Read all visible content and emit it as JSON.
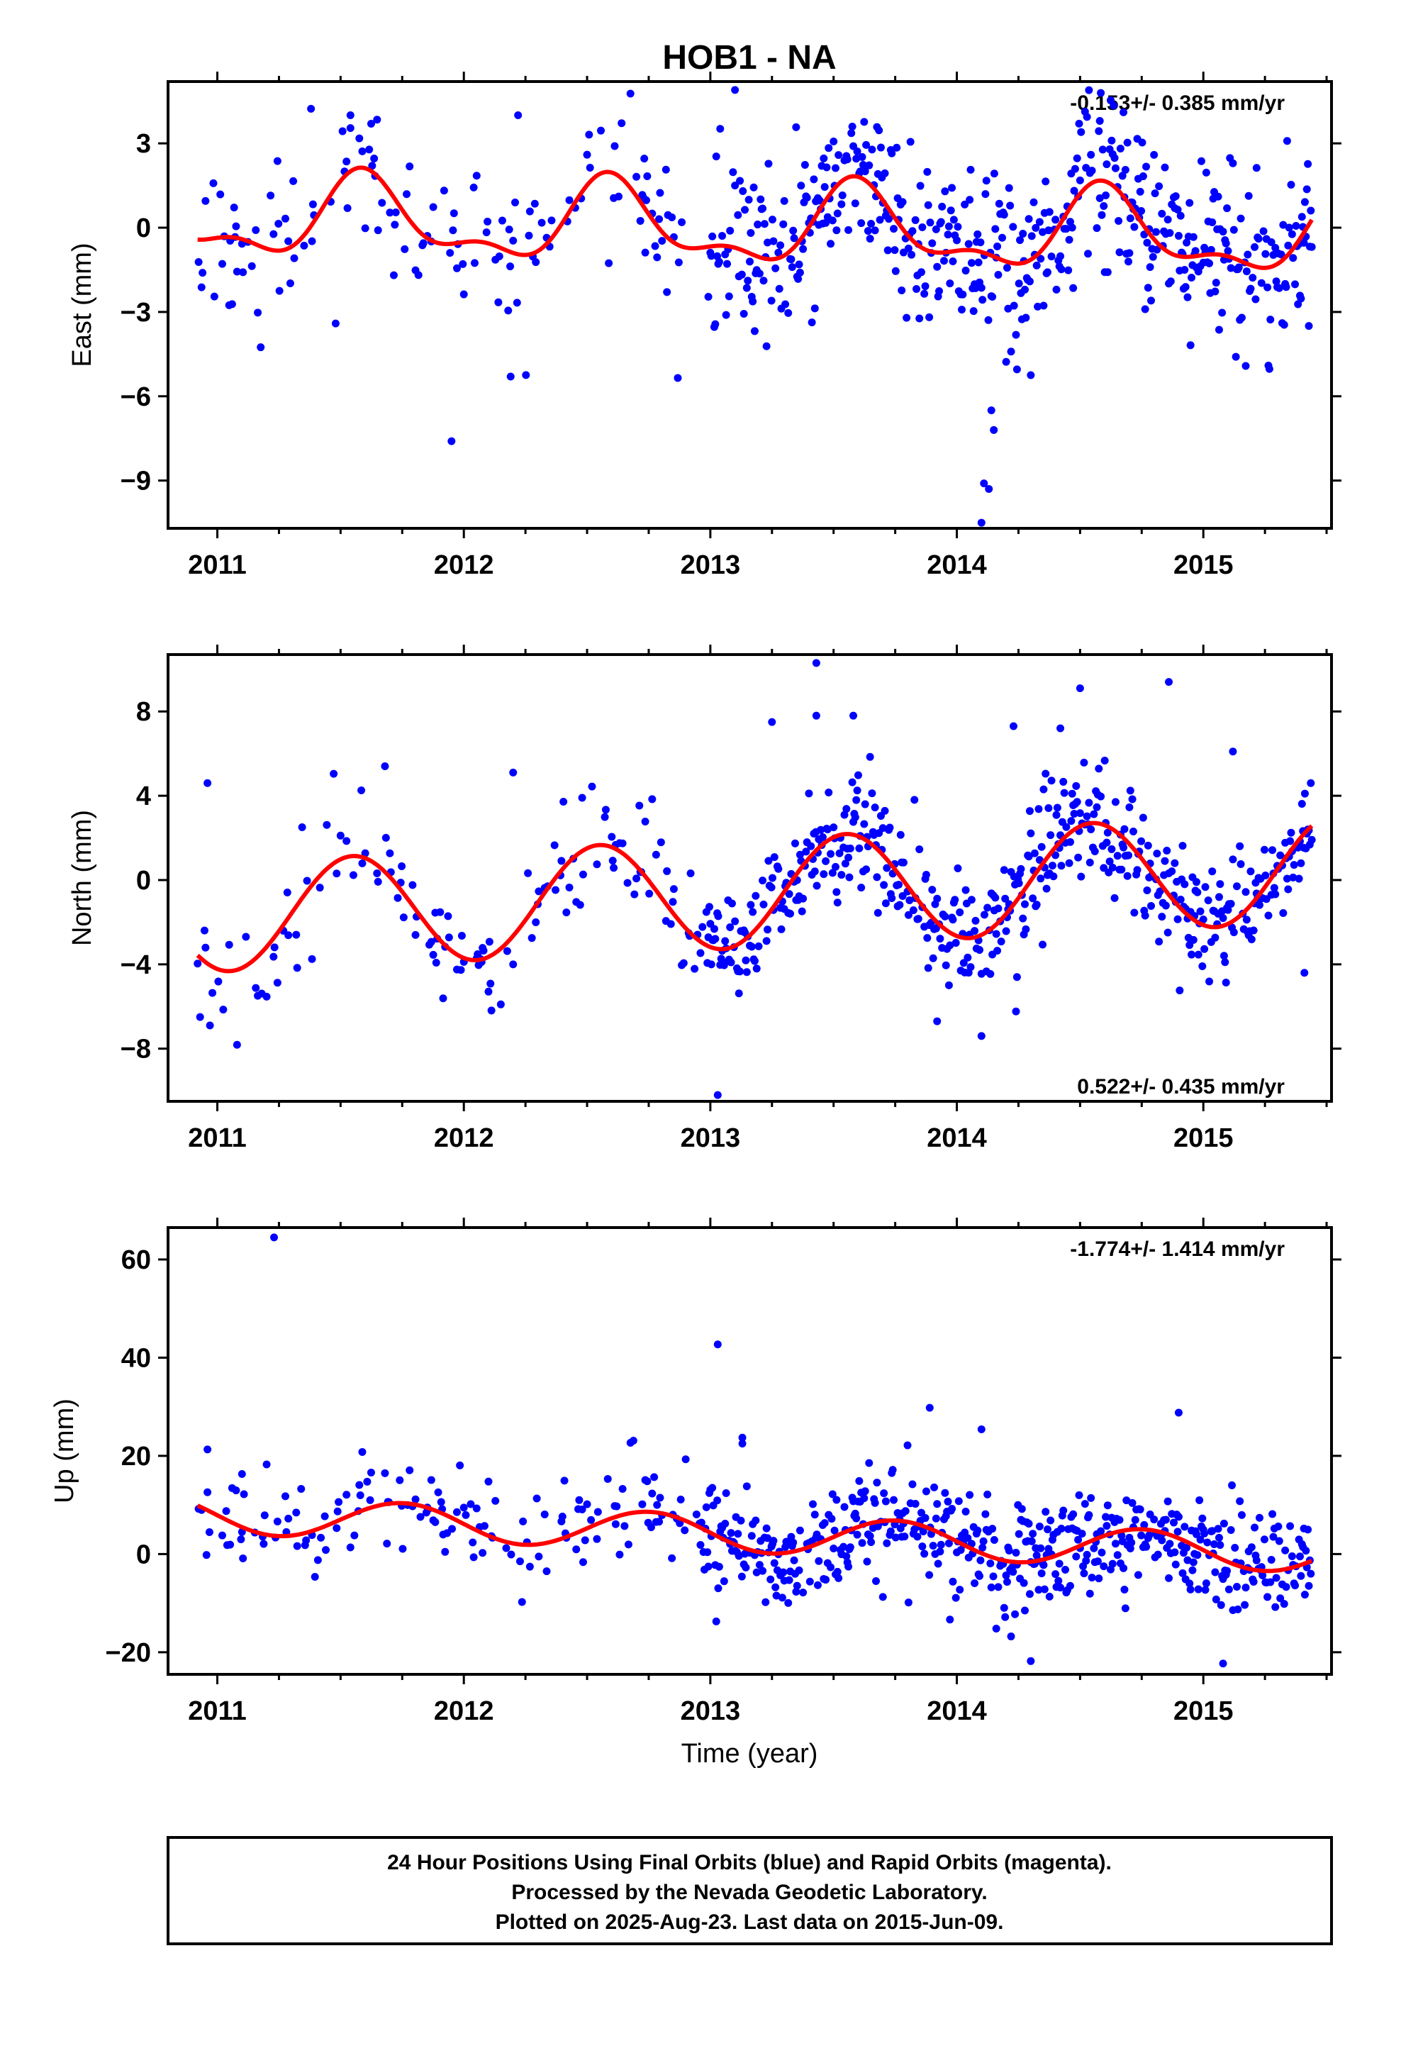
{
  "title": "HOB1 - NA",
  "xlabel": "Time (year)",
  "colors": {
    "points": "#0000ff",
    "fit": "#ff0000",
    "frame": "#000000"
  },
  "notes": [
    "24 Hour Positions Using Final Orbits (blue) and Rapid Orbits (magenta).",
    "Processed by the Nevada Geodetic Laboratory.",
    "Plotted on 2025-Aug-23. Last data on 2015-Jun-09."
  ],
  "chart_data": [
    {
      "type": "scatter",
      "component": "East",
      "ylabel": "East (mm)",
      "rate_label": "-0.153+/- 0.385 mm/yr",
      "xlim": [
        2010.8,
        2015.52
      ],
      "ylim": [
        -10.7,
        5.2
      ],
      "x_ticks": [
        2011,
        2012,
        2013,
        2014,
        2015
      ],
      "y_ticks": [
        -9,
        -6,
        -3,
        0,
        3
      ],
      "y_tick_labels": [
        "−9",
        "−6",
        "−3",
        "0",
        "3"
      ],
      "trend": {
        "rate": -0.153,
        "offset": 0.0
      },
      "seasonal": [
        {
          "amp": 1.3,
          "period": 1.0,
          "phase": 2011.35
        },
        {
          "amp": 0.6,
          "period": 0.5,
          "phase": 2011.45
        }
      ],
      "scatter_sigma": 1.5,
      "outliers": [
        {
          "x": 2011.95,
          "y": -7.6
        },
        {
          "x": 2012.19,
          "y": -5.3
        },
        {
          "x": 2014.1,
          "y": -10.5
        },
        {
          "x": 2014.11,
          "y": -9.1
        },
        {
          "x": 2014.13,
          "y": -9.3
        },
        {
          "x": 2014.14,
          "y": -6.5
        },
        {
          "x": 2014.15,
          "y": -7.2
        },
        {
          "x": 2013.1,
          "y": 4.9
        },
        {
          "x": 2014.58,
          "y": 3.8
        },
        {
          "x": 2011.54,
          "y": 4.0
        },
        {
          "x": 2012.22,
          "y": 4.0
        }
      ]
    },
    {
      "type": "scatter",
      "component": "North",
      "ylabel": "North (mm)",
      "rate_label": "0.522+/- 0.435 mm/yr",
      "xlim": [
        2010.8,
        2015.52
      ],
      "ylim": [
        -10.5,
        10.7
      ],
      "x_ticks": [
        2011,
        2012,
        2013,
        2014,
        2015
      ],
      "y_ticks": [
        -8,
        -4,
        0,
        4,
        8
      ],
      "y_tick_labels": [
        "−8",
        "−4",
        "0",
        "4",
        "8"
      ],
      "trend": {
        "rate": 0.522,
        "offset": -0.6
      },
      "seasonal": [
        {
          "amp": 2.6,
          "period": 1.0,
          "phase": 2011.3
        }
      ],
      "scatter_sigma": 1.5,
      "outliers": [
        {
          "x": 2013.43,
          "y": 10.3
        },
        {
          "x": 2014.86,
          "y": 9.4
        },
        {
          "x": 2014.5,
          "y": 9.1
        },
        {
          "x": 2013.25,
          "y": 7.5
        },
        {
          "x": 2013.43,
          "y": 7.8
        },
        {
          "x": 2013.58,
          "y": 7.8
        },
        {
          "x": 2014.23,
          "y": 7.3
        },
        {
          "x": 2014.42,
          "y": 7.2
        },
        {
          "x": 2015.12,
          "y": 6.1
        },
        {
          "x": 2013.03,
          "y": -10.2
        },
        {
          "x": 2014.1,
          "y": -7.4
        },
        {
          "x": 2013.92,
          "y": -6.7
        },
        {
          "x": 2010.97,
          "y": -6.9
        },
        {
          "x": 2010.93,
          "y": -6.5
        },
        {
          "x": 2012.15,
          "y": -5.9
        },
        {
          "x": 2015.41,
          "y": -4.4
        },
        {
          "x": 2010.96,
          "y": 4.6
        },
        {
          "x": 2011.68,
          "y": 5.4
        },
        {
          "x": 2012.2,
          "y": 5.1
        }
      ]
    },
    {
      "type": "scatter",
      "component": "Up",
      "ylabel": "Up (mm)",
      "rate_label": "-1.774+/- 1.414 mm/yr",
      "xlim": [
        2010.8,
        2015.52
      ],
      "ylim": [
        -24.5,
        66.5
      ],
      "x_ticks": [
        2011,
        2012,
        2013,
        2014,
        2015
      ],
      "y_ticks": [
        -20,
        0,
        20,
        40,
        60
      ],
      "y_tick_labels": [
        "−20",
        "0",
        "20",
        "40",
        "60"
      ],
      "trend": {
        "rate": -1.774,
        "offset": 4.0
      },
      "seasonal": [
        {
          "amp": 3.8,
          "period": 1.0,
          "phase": 2011.5
        }
      ],
      "scatter_sigma": 5.5,
      "outliers": [
        {
          "x": 2011.23,
          "y": 64.5
        },
        {
          "x": 2013.03,
          "y": 42.7
        },
        {
          "x": 2013.13,
          "y": 23.7
        },
        {
          "x": 2013.13,
          "y": 22.5
        },
        {
          "x": 2013.89,
          "y": 29.8
        },
        {
          "x": 2014.1,
          "y": 25.4
        },
        {
          "x": 2014.9,
          "y": 28.8
        },
        {
          "x": 2012.9,
          "y": 19.3
        },
        {
          "x": 2014.3,
          "y": -21.8
        },
        {
          "x": 2015.08,
          "y": -22.3
        },
        {
          "x": 2011.1,
          "y": 16.3
        },
        {
          "x": 2010.96,
          "y": 21.3
        }
      ]
    }
  ]
}
